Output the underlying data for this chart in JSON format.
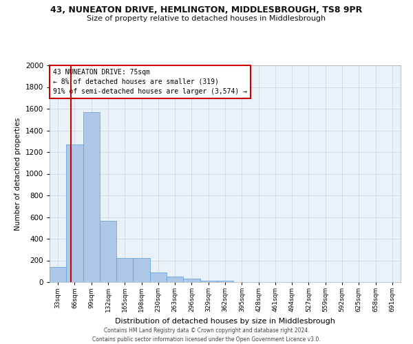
{
  "title": "43, NUNEATON DRIVE, HEMLINGTON, MIDDLESBROUGH, TS8 9PR",
  "subtitle": "Size of property relative to detached houses in Middlesbrough",
  "xlabel": "Distribution of detached houses by size in Middlesbrough",
  "ylabel": "Number of detached properties",
  "footer_line1": "Contains HM Land Registry data © Crown copyright and database right 2024.",
  "footer_line2": "Contains public sector information licensed under the Open Government Licence v3.0.",
  "bin_labels": [
    "33sqm",
    "66sqm",
    "99sqm",
    "132sqm",
    "165sqm",
    "198sqm",
    "230sqm",
    "263sqm",
    "296sqm",
    "329sqm",
    "362sqm",
    "395sqm",
    "428sqm",
    "461sqm",
    "494sqm",
    "527sqm",
    "559sqm",
    "592sqm",
    "625sqm",
    "658sqm",
    "691sqm"
  ],
  "bar_values": [
    140,
    1270,
    1570,
    565,
    220,
    220,
    90,
    50,
    30,
    15,
    15,
    0,
    0,
    0,
    0,
    0,
    0,
    0,
    0,
    0,
    0
  ],
  "bar_color": "#aec6e8",
  "bar_edge_color": "#5a9fd4",
  "annotation_line1": "43 NUNEATON DRIVE: 75sqm",
  "annotation_line2": "← 8% of detached houses are smaller (319)",
  "annotation_line3": "91% of semi-detached houses are larger (3,574) →",
  "annotation_box_color": "#cc0000",
  "ylim": [
    0,
    2000
  ],
  "yticks": [
    0,
    200,
    400,
    600,
    800,
    1000,
    1200,
    1400,
    1600,
    1800,
    2000
  ],
  "ax_background_color": "#e8f0f8",
  "background_color": "#ffffff",
  "grid_color": "#c8d4e0"
}
